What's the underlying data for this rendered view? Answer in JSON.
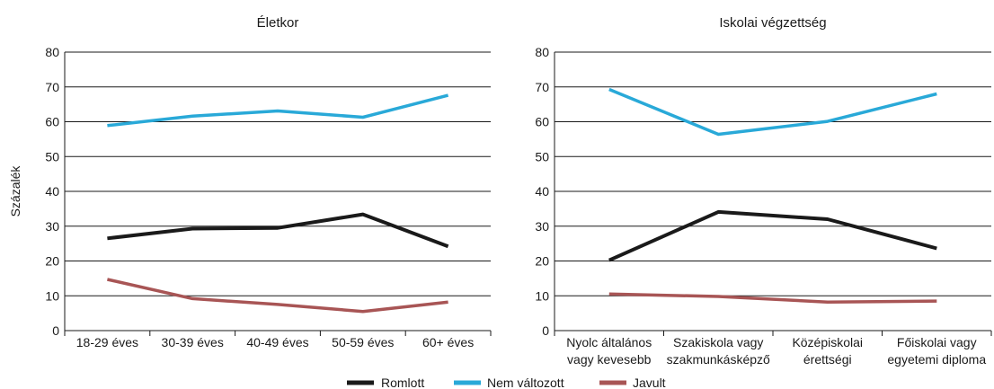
{
  "ylabel": "Százalék",
  "legend": [
    {
      "label": "Romlott",
      "color": "#1a1a1a"
    },
    {
      "label": "Nem változott",
      "color": "#29a9d8"
    },
    {
      "label": "Javult",
      "color": "#a85555"
    }
  ],
  "chart_data": [
    {
      "type": "line",
      "title": "Életkor",
      "ylim": [
        0,
        80
      ],
      "yticks": [
        0,
        10,
        20,
        30,
        40,
        50,
        60,
        70,
        80
      ],
      "categories": [
        [
          "18-29 éves"
        ],
        [
          "30-39 éves"
        ],
        [
          "40-49 éves"
        ],
        [
          "50-59 éves"
        ],
        [
          "60+ éves"
        ]
      ],
      "series": [
        {
          "name": "Romlott",
          "color": "#1a1a1a",
          "values": [
            26.5,
            29.3,
            29.5,
            33.4,
            24.2
          ]
        },
        {
          "name": "Nem változott",
          "color": "#29a9d8",
          "values": [
            58.9,
            61.6,
            63.1,
            61.3,
            67.6
          ]
        },
        {
          "name": "Javult",
          "color": "#a85555",
          "values": [
            14.7,
            9.2,
            7.5,
            5.5,
            8.2
          ]
        }
      ]
    },
    {
      "type": "line",
      "title": "Iskolai végzettség",
      "ylim": [
        0,
        80
      ],
      "yticks": [
        0,
        10,
        20,
        30,
        40,
        50,
        60,
        70,
        80
      ],
      "categories": [
        [
          "Nyolc általános",
          "vagy kevesebb"
        ],
        [
          "Szakiskola vagy",
          "szakmunkásképző"
        ],
        [
          "Középiskolai",
          "érettségi"
        ],
        [
          "Főiskolai vagy",
          "egyetemi diploma"
        ]
      ],
      "series": [
        {
          "name": "Romlott",
          "color": "#1a1a1a",
          "values": [
            20.2,
            34.1,
            32.0,
            23.6
          ]
        },
        {
          "name": "Nem változott",
          "color": "#29a9d8",
          "values": [
            69.3,
            56.4,
            60.1,
            68.0
          ]
        },
        {
          "name": "Javult",
          "color": "#a85555",
          "values": [
            10.5,
            9.8,
            8.2,
            8.5
          ]
        }
      ]
    }
  ]
}
